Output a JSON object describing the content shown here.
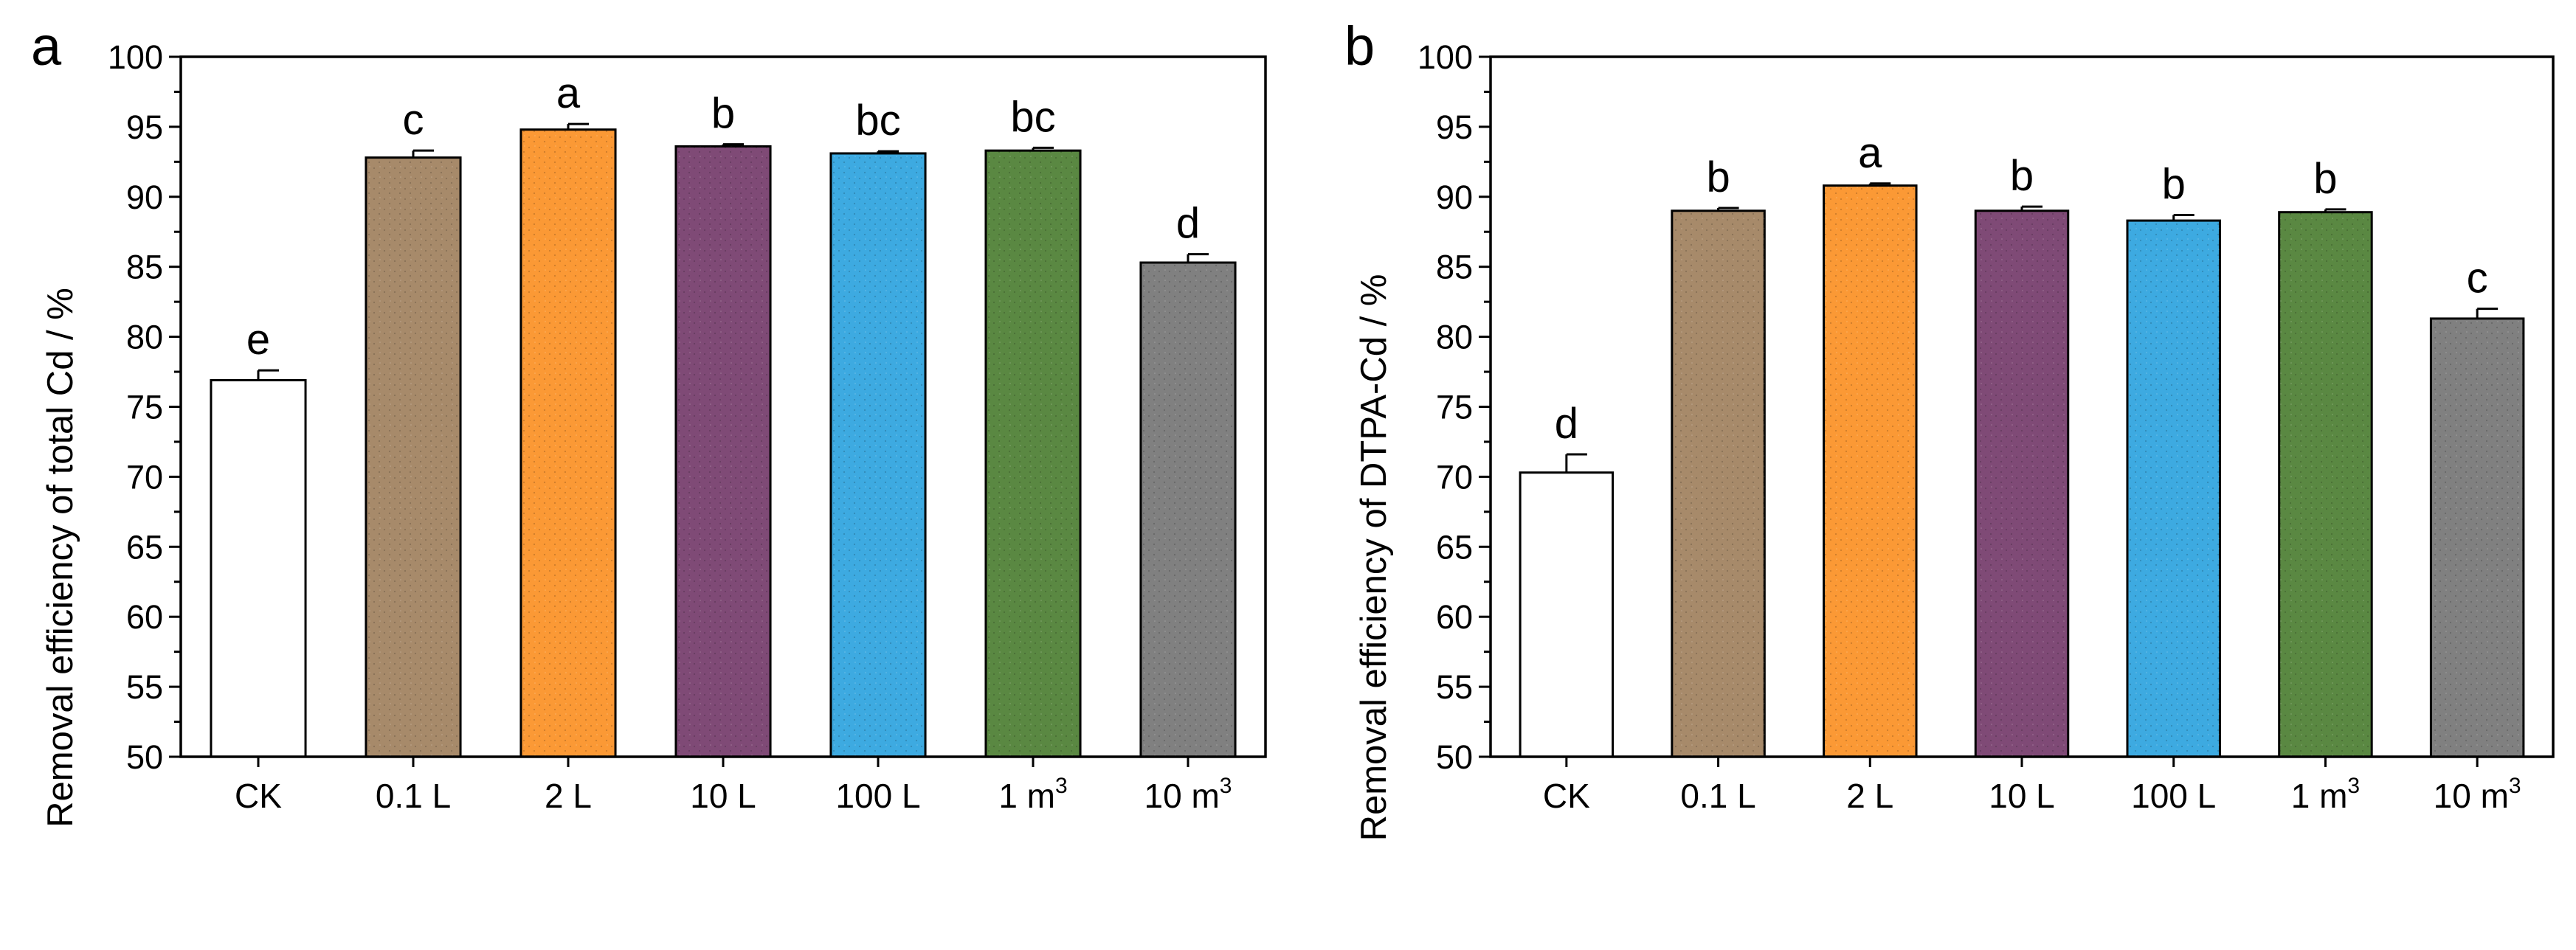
{
  "figure": {
    "panels": [
      {
        "panel_label": "a",
        "ylabel": "Removal efficiency of total Cd / %",
        "xlabel": ""
      },
      {
        "panel_label": "b",
        "ylabel": "Removal efficiency of DTPA-Cd / %",
        "xlabel": ""
      }
    ]
  },
  "chart_data": [
    {
      "type": "bar",
      "panel_label": "a",
      "title": "",
      "xlabel": "",
      "ylabel": "Removal efficiency of total Cd / %",
      "ylim": [
        50,
        100
      ],
      "yticks": [
        50,
        55,
        60,
        65,
        70,
        75,
        80,
        85,
        90,
        95,
        100
      ],
      "grid": false,
      "categories": [
        {
          "base": "CK",
          "sup": ""
        },
        {
          "base": "0.1 L",
          "sup": ""
        },
        {
          "base": "2 L",
          "sup": ""
        },
        {
          "base": "10 L",
          "sup": ""
        },
        {
          "base": "100 L",
          "sup": ""
        },
        {
          "base": "1 m",
          "sup": "3"
        },
        {
          "base": "10 m",
          "sup": "3"
        }
      ],
      "values": [
        76.9,
        92.8,
        94.8,
        93.6,
        93.1,
        93.3,
        85.3
      ],
      "errors": [
        0.7,
        0.5,
        0.4,
        0.15,
        0.15,
        0.2,
        0.6
      ],
      "significance": [
        "e",
        "c",
        "a",
        "b",
        "bc",
        "bc",
        "d"
      ],
      "colors": [
        "#ffffff",
        "#a78a6a",
        "#fb9935",
        "#7f4a76",
        "#3daae1",
        "#5a8842",
        "#808080"
      ]
    },
    {
      "type": "bar",
      "panel_label": "b",
      "title": "",
      "xlabel": "",
      "ylabel": "Removal efficiency of DTPA-Cd / %",
      "ylim": [
        50,
        100
      ],
      "yticks": [
        50,
        55,
        60,
        65,
        70,
        75,
        80,
        85,
        90,
        95,
        100
      ],
      "grid": false,
      "categories": [
        {
          "base": "CK",
          "sup": ""
        },
        {
          "base": "0.1 L",
          "sup": ""
        },
        {
          "base": "2 L",
          "sup": ""
        },
        {
          "base": "10 L",
          "sup": ""
        },
        {
          "base": "100 L",
          "sup": ""
        },
        {
          "base": "1 m",
          "sup": "3"
        },
        {
          "base": "10 m",
          "sup": "3"
        }
      ],
      "values": [
        70.3,
        89.0,
        90.8,
        89.0,
        88.3,
        88.9,
        81.3
      ],
      "errors": [
        1.3,
        0.2,
        0.15,
        0.3,
        0.4,
        0.2,
        0.7
      ],
      "significance": [
        "d",
        "b",
        "a",
        "b",
        "b",
        "b",
        "c"
      ],
      "colors": [
        "#ffffff",
        "#a78a6a",
        "#fb9935",
        "#7f4a76",
        "#3daae1",
        "#5a8842",
        "#808080"
      ]
    }
  ]
}
